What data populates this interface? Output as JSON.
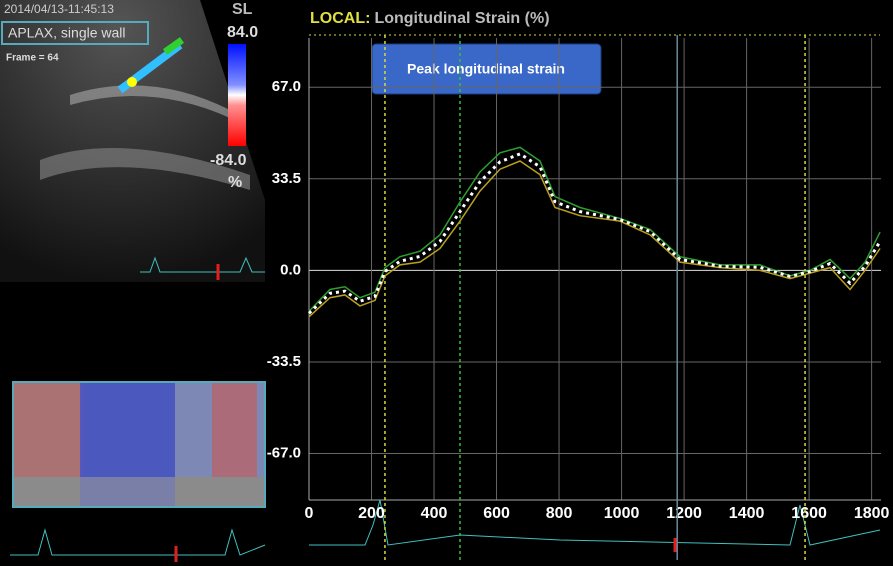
{
  "viewer": {
    "timestamp": "2014/04/13-11:45:13",
    "view": "APLAX, single wall",
    "frame": "Frame = 64",
    "colorbar_title": "SL",
    "colorbar_max": "84.0",
    "colorbar_min": "-84.0",
    "colorbar_unit": "%"
  },
  "chart_data": {
    "type": "line",
    "title_prefix": "LOCAL:",
    "title": "Longitudinal Strain (%)",
    "annotation": "Peak longitudinal strain",
    "x": [
      0,
      67,
      115,
      163,
      211,
      243,
      291,
      355,
      419,
      483,
      547,
      611,
      675,
      739,
      787,
      867,
      995,
      1091,
      1187,
      1315,
      1443,
      1539,
      1603,
      1667,
      1731,
      1779,
      1827
    ],
    "series": [
      {
        "color": "#2e9e2e",
        "values": [
          -15,
          -7,
          -6,
          -10,
          -8,
          1,
          5,
          7,
          13,
          25,
          36,
          43,
          45,
          40,
          27,
          23,
          19,
          15,
          5,
          2,
          2,
          -2,
          0,
          4,
          -3,
          3,
          14
        ]
      },
      {
        "color": "#b8a020",
        "values": [
          -17,
          -10,
          -9,
          -13,
          -11,
          -2,
          2,
          3,
          8,
          18,
          29,
          37,
          40,
          35,
          23,
          20,
          18,
          13,
          3,
          1,
          0,
          -3,
          -1,
          1,
          -7,
          0,
          8
        ]
      },
      {
        "color": "#ffffff",
        "dashed": true,
        "values": [
          -15.7,
          -8.4,
          -7.6,
          -11.3,
          -9.5,
          -0.4,
          3.3,
          5.1,
          10.6,
          21.5,
          32.4,
          39.7,
          42.6,
          37.9,
          25.1,
          21.5,
          18.6,
          14.2,
          4.0,
          1.5,
          1.1,
          -2.2,
          -0.4,
          2.5,
          -4.7,
          1.5,
          10.6
        ]
      }
    ],
    "events": [
      {
        "x": 243,
        "color": "#d8d840",
        "dashed": true
      },
      {
        "x": 483,
        "color": "#3cbc3c",
        "dashed": true
      },
      {
        "x": 1178,
        "color": "#6a8a9a",
        "dashed": false
      },
      {
        "x": 1587,
        "color": "#d8d840",
        "dashed": true
      }
    ],
    "xlim": [
      0,
      1830
    ],
    "xticks": [
      0,
      200,
      400,
      600,
      800,
      1000,
      1200,
      1400,
      1600,
      1800
    ],
    "ylim": [
      -84,
      85
    ],
    "yticks": [
      {
        "value": 67,
        "label": "67.0"
      },
      {
        "value": 33.5,
        "label": "33.5"
      },
      {
        "value": 0,
        "label": "0.0"
      },
      {
        "value": -33.5,
        "label": "-33.5"
      },
      {
        "value": -67,
        "label": "-67.0"
      }
    ],
    "grid": true
  }
}
